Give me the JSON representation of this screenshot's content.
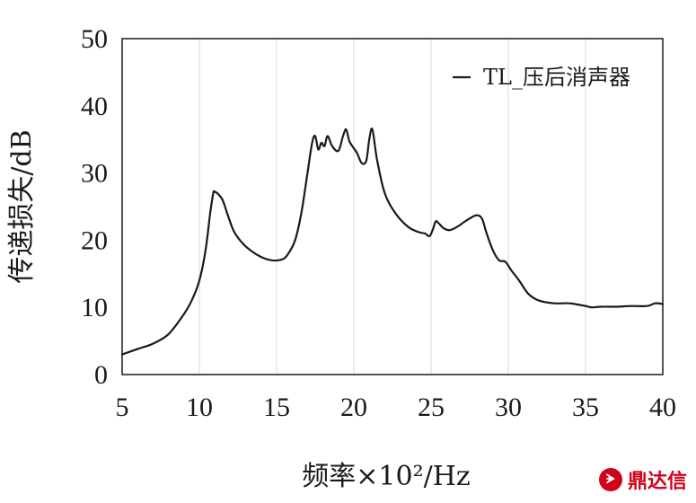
{
  "chart_data": {
    "type": "line",
    "title": "",
    "xlabel": "频率×10²/Hz",
    "ylabel": "传递损失/dB",
    "xlim": [
      5,
      40
    ],
    "ylim": [
      0,
      50
    ],
    "xticks": [
      5,
      10,
      15,
      20,
      25,
      30,
      35,
      40
    ],
    "yticks": [
      0,
      10,
      20,
      30,
      40,
      50
    ],
    "grid": "vertical",
    "legend_position": "top-right",
    "series": [
      {
        "name": "TL_压后消声器",
        "color": "#1a1a1a",
        "x": [
          5,
          6,
          7,
          8,
          9,
          9.5,
          10,
          10.4,
          10.7,
          10.9,
          11.0,
          11.2,
          11.5,
          11.8,
          12.2,
          12.7,
          13.3,
          14.0,
          14.7,
          15.3,
          15.7,
          16.2,
          16.6,
          17.0,
          17.3,
          17.5,
          17.7,
          17.9,
          18.1,
          18.3,
          18.6,
          19.0,
          19.3,
          19.5,
          19.7,
          19.9,
          20.2,
          20.5,
          20.8,
          21.0,
          21.2,
          21.5,
          22.0,
          22.7,
          23.5,
          24.2,
          24.6,
          24.9,
          25.1,
          25.3,
          25.5,
          25.8,
          26.2,
          26.7,
          27.2,
          27.7,
          28.0,
          28.3,
          28.6,
          29.0,
          29.4,
          29.8,
          30.2,
          30.7,
          31.3,
          32.0,
          33.0,
          34.0,
          35.0,
          35.4,
          36.0,
          37.0,
          38.0,
          39.0,
          39.5,
          40.0
        ],
        "y": [
          3.0,
          3.8,
          4.6,
          6.0,
          9.0,
          11.0,
          14.0,
          18.5,
          24.0,
          27.0,
          27.2,
          26.9,
          26.0,
          24.0,
          21.5,
          19.8,
          18.5,
          17.5,
          17.0,
          17.1,
          17.8,
          20.0,
          24.0,
          30.0,
          34.5,
          35.5,
          33.5,
          34.5,
          34.0,
          35.5,
          34.0,
          33.3,
          35.5,
          36.5,
          34.8,
          34.0,
          33.0,
          31.5,
          31.8,
          35.0,
          36.5,
          32.0,
          27.0,
          24.0,
          22.0,
          21.2,
          21.0,
          20.6,
          21.5,
          22.8,
          22.5,
          21.8,
          21.5,
          22.0,
          22.8,
          23.5,
          23.7,
          23.2,
          21.0,
          18.5,
          17.0,
          16.8,
          15.5,
          14.0,
          12.0,
          11.0,
          10.6,
          10.6,
          10.2,
          10.0,
          10.1,
          10.1,
          10.2,
          10.2,
          10.6,
          10.5
        ]
      }
    ]
  },
  "watermark": {
    "seal_glyph": "ᗘ",
    "text": "鼎达信"
  }
}
